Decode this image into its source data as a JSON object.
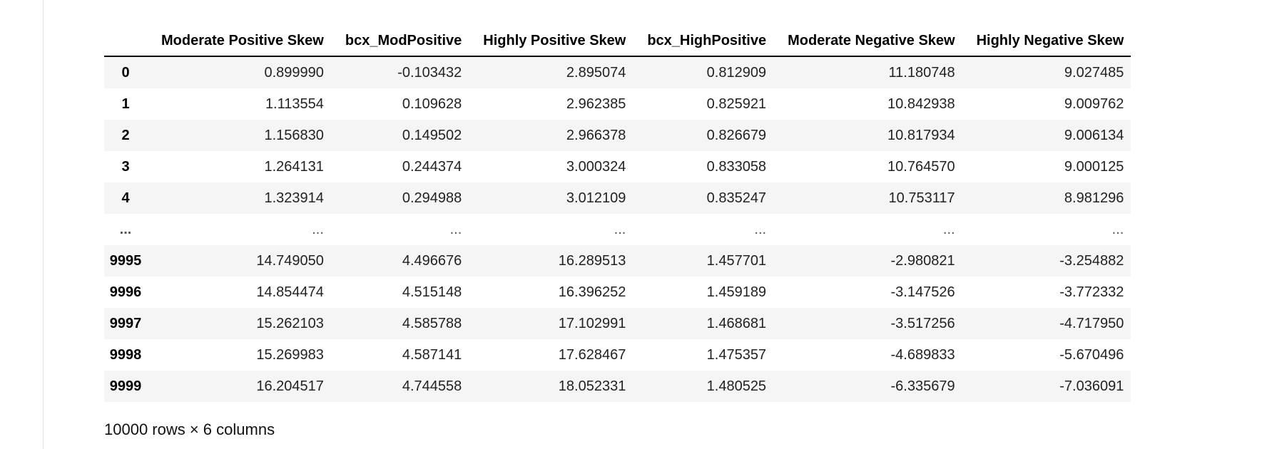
{
  "table": {
    "columns": [
      "Moderate Positive Skew",
      "bcx_ModPositive",
      "Highly Positive Skew",
      "bcx_HighPositive",
      "Moderate Negative Skew",
      "Highly Negative Skew"
    ],
    "rows": [
      {
        "index": "0",
        "values": [
          "0.899990",
          "-0.103432",
          "2.895074",
          "0.812909",
          "11.180748",
          "9.027485"
        ]
      },
      {
        "index": "1",
        "values": [
          "1.113554",
          "0.109628",
          "2.962385",
          "0.825921",
          "10.842938",
          "9.009762"
        ]
      },
      {
        "index": "2",
        "values": [
          "1.156830",
          "0.149502",
          "2.966378",
          "0.826679",
          "10.817934",
          "9.006134"
        ]
      },
      {
        "index": "3",
        "values": [
          "1.264131",
          "0.244374",
          "3.000324",
          "0.833058",
          "10.764570",
          "9.000125"
        ]
      },
      {
        "index": "4",
        "values": [
          "1.323914",
          "0.294988",
          "3.012109",
          "0.835247",
          "10.753117",
          "8.981296"
        ]
      },
      {
        "index": "...",
        "values": [
          "...",
          "...",
          "...",
          "...",
          "...",
          "..."
        ]
      },
      {
        "index": "9995",
        "values": [
          "14.749050",
          "4.496676",
          "16.289513",
          "1.457701",
          "-2.980821",
          "-3.254882"
        ]
      },
      {
        "index": "9996",
        "values": [
          "14.854474",
          "4.515148",
          "16.396252",
          "1.459189",
          "-3.147526",
          "-3.772332"
        ]
      },
      {
        "index": "9997",
        "values": [
          "15.262103",
          "4.585788",
          "17.102991",
          "1.468681",
          "-3.517256",
          "-4.717950"
        ]
      },
      {
        "index": "9998",
        "values": [
          "15.269983",
          "4.587141",
          "17.628467",
          "1.475357",
          "-4.689833",
          "-5.670496"
        ]
      },
      {
        "index": "9999",
        "values": [
          "16.204517",
          "4.744558",
          "18.052331",
          "1.480525",
          "-6.335679",
          "-7.036091"
        ]
      }
    ]
  },
  "footer": {
    "shape_text": "10000 rows × 6 columns"
  }
}
